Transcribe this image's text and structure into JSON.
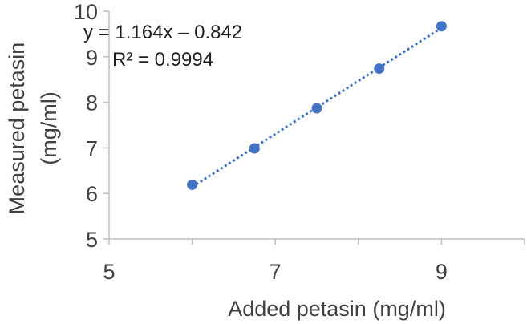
{
  "chart_data": {
    "type": "scatter",
    "title": "",
    "xlabel": "Added petasin (mg/ml)",
    "ylabel_lines": [
      "Measured petasin",
      "(mg/ml)"
    ],
    "xlim": [
      5,
      10
    ],
    "ylim": [
      5,
      10
    ],
    "x_tick_labels": [
      "5",
      "7",
      "9"
    ],
    "x_minor_ticks": [
      6,
      8,
      10
    ],
    "y_tick_labels": [
      "5",
      "6",
      "7",
      "8",
      "9",
      "10"
    ],
    "grid": false,
    "series": [
      {
        "color": "#4472C4",
        "points": [
          {
            "x": 6.0,
            "y": 6.19
          },
          {
            "x": 6.75,
            "y": 6.99
          },
          {
            "x": 7.5,
            "y": 7.87
          },
          {
            "x": 8.25,
            "y": 8.74
          },
          {
            "x": 9.0,
            "y": 9.67
          }
        ]
      }
    ],
    "trendline": {
      "type": "linear",
      "style": "dotted",
      "color": "#4472C4",
      "slope": 1.164,
      "intercept": -0.842,
      "x_range": [
        6.0,
        9.0
      ],
      "equation_label": "y = 1.164x – 0.842",
      "r2_label": "R² = 0.9994"
    }
  }
}
